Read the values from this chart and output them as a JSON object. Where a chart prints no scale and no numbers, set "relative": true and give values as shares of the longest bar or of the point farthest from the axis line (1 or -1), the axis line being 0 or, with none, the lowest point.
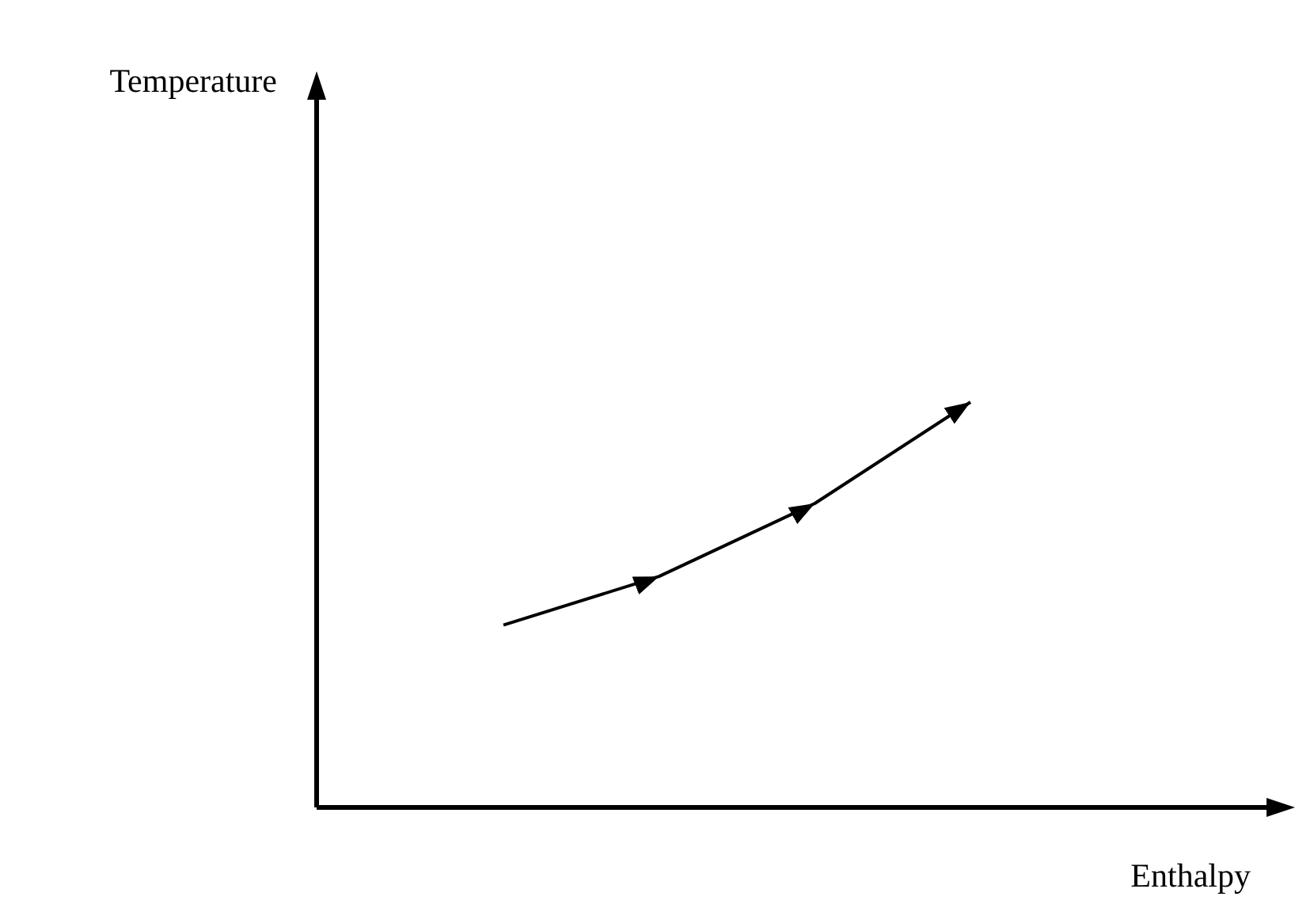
{
  "chart_data": {
    "type": "line",
    "xlabel": "Enthalpy",
    "annotations": [
      "Temperature"
    ],
    "relative": true,
    "categories": [
      null,
      null,
      null,
      null
    ],
    "values": [
      0.45,
      0.57,
      0.75,
      1
    ],
    "color": "#000000"
  }
}
